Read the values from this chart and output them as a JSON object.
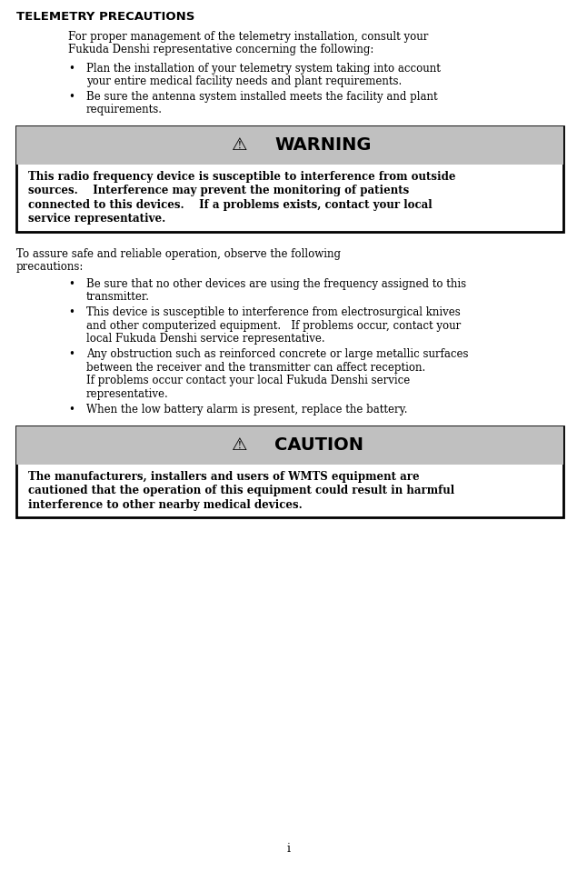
{
  "bg_color": "#ffffff",
  "title": "TELEMETRY PRECAUTIONS",
  "intro_text": "For proper management of the telemetry installation, consult your\nFukuda Denshi representative concerning the following:",
  "bullets_intro": [
    "Plan the installation of your telemetry system taking into account\nyour entire medical facility needs and plant requirements.",
    "Be sure the antenna system installed meets the facility and plant\nrequirements."
  ],
  "warning_body_lines": [
    "This radio frequency device is susceptible to interference from outside",
    "sources.    Interference may prevent the monitoring of patients",
    "connected to this devices.    If a problems exists, contact your local",
    "service representative."
  ],
  "safe_text": "To assure safe and reliable operation, observe the following\nprecautions:",
  "bullets_safe": [
    "Be sure that no other devices are using the frequency assigned to this\ntransmitter.",
    "This device is susceptible to interference from electrosurgical knives\nand other computerized equipment.   If problems occur, contact your\nlocal Fukuda Denshi service representative.",
    "Any obstruction such as reinforced concrete or large metallic surfaces\nbetween the receiver and the transmitter can affect reception.\nIf problems occur contact your local Fukuda Denshi service\nrepresentative.",
    "When the low battery alarm is present, replace the battery."
  ],
  "caution_body_lines": [
    "The manufacturers, installers and users of WMTS equipment are",
    "cautioned that the operation of this equipment could result in harmful",
    "interference to other nearby medical devices."
  ],
  "page_number": "i",
  "warning_bg": "#c0c0c0",
  "box_bg": "#ffffff",
  "box_border": "#000000"
}
